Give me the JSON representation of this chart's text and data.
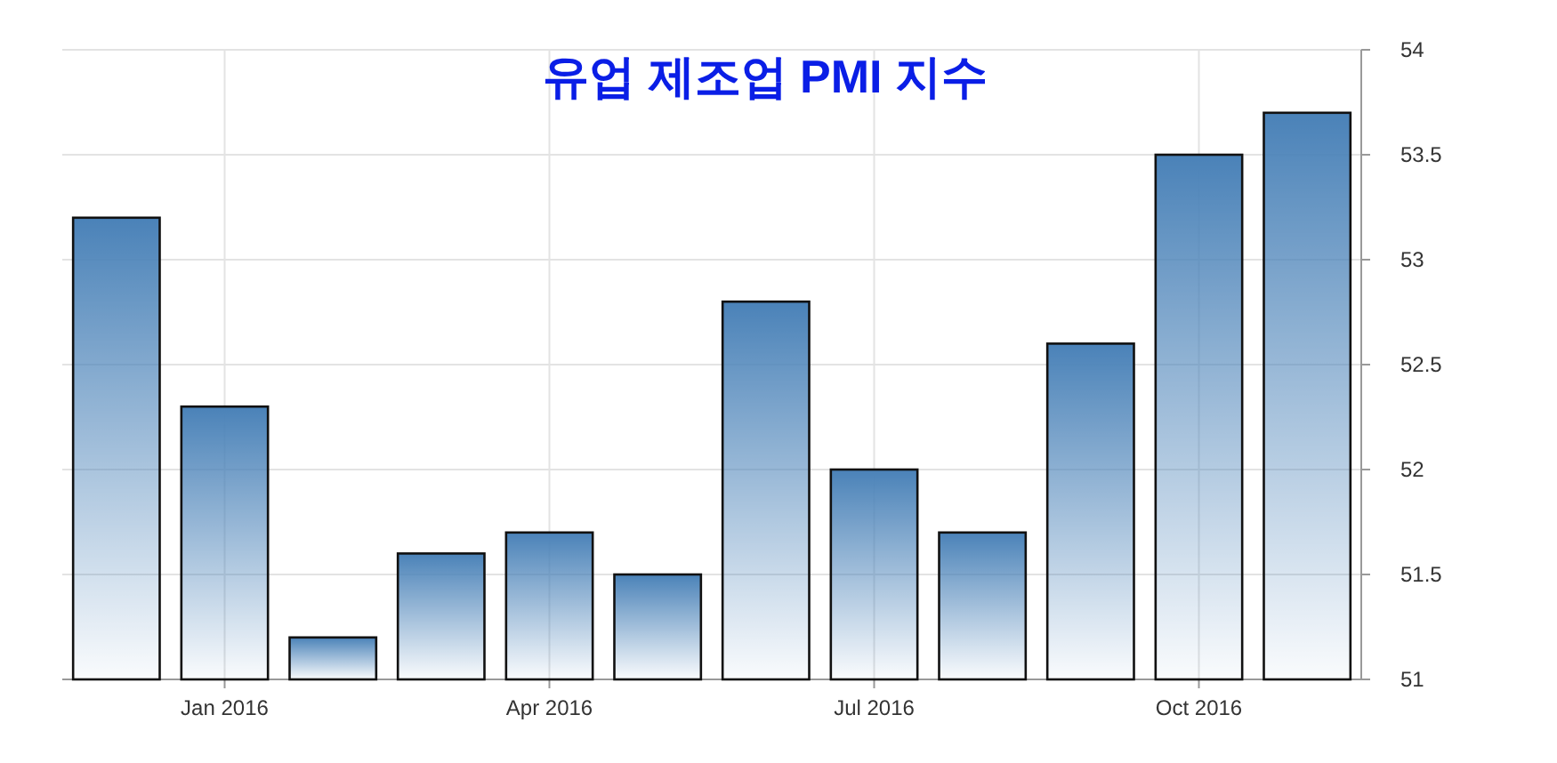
{
  "chart_data": {
    "type": "bar",
    "title": "유업 제조업 PMI 지수",
    "categories": [
      null,
      "Jan 2016",
      null,
      null,
      "Apr 2016",
      null,
      null,
      "Jul 2016",
      null,
      null,
      "Oct 2016",
      null
    ],
    "values": [
      53.2,
      52.3,
      51.2,
      51.6,
      51.7,
      51.5,
      52.8,
      52.0,
      51.7,
      52.6,
      53.5,
      53.7
    ],
    "color": "#4a82b8",
    "ylim": [
      51,
      54
    ],
    "yticks": [
      51,
      51.5,
      52,
      52.5,
      53,
      53.5,
      54
    ],
    "grid": true
  }
}
